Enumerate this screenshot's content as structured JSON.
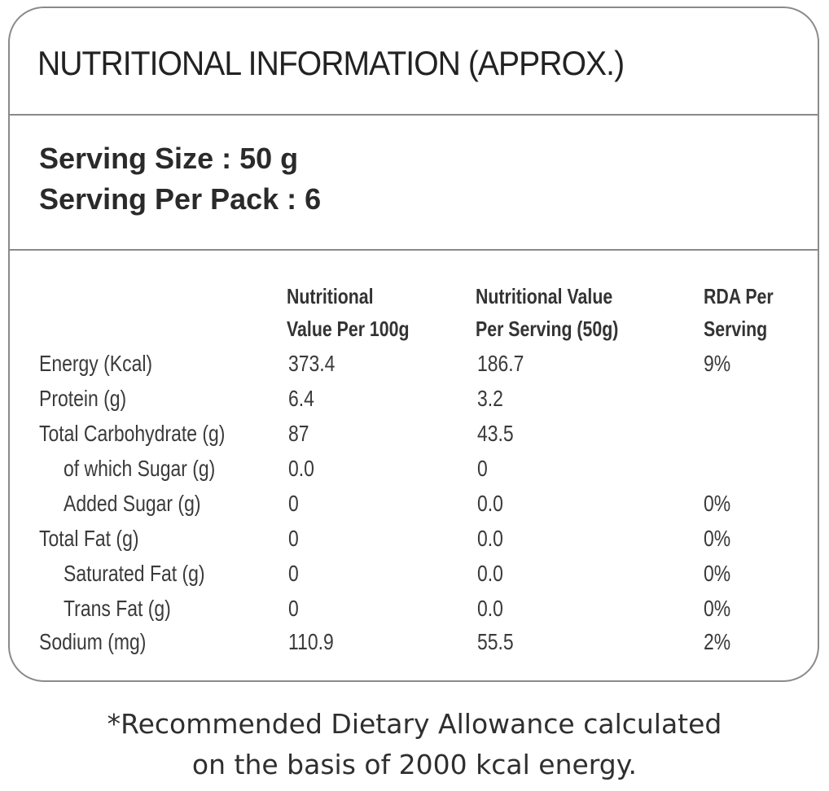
{
  "label": {
    "title": "NUTRITIONAL INFORMATION (APPROX.)",
    "serving_size": "Serving Size : 50 g",
    "serving_per_pack": "Serving Per Pack : 6"
  },
  "table": {
    "headers": {
      "per_100g_line1": "Nutritional",
      "per_100g_line2": "Value Per 100g",
      "per_serving_line1": "Nutritional Value",
      "per_serving_line2": "Per Serving (50g)",
      "rda_line1": "RDA Per",
      "rda_line2": "Serving"
    },
    "rows": [
      {
        "name": "Energy (Kcal)",
        "per_100g": "373.4",
        "per_serving": "186.7",
        "rda": "9%"
      },
      {
        "name": "Protein (g)",
        "per_100g": "6.4",
        "per_serving": "3.2",
        "rda": ""
      },
      {
        "name": "Total Carbohydrate (g)",
        "per_100g": "87",
        "per_serving": "43.5",
        "rda": ""
      },
      {
        "name": "of which Sugar (g)",
        "per_100g": "0.0",
        "per_serving": "0",
        "rda": ""
      },
      {
        "name": "Added Sugar (g)",
        "per_100g": "0",
        "per_serving": "0.0",
        "rda": "0%"
      },
      {
        "name": "Total Fat (g)",
        "per_100g": "0",
        "per_serving": "0.0",
        "rda": "0%"
      },
      {
        "name": "Saturated Fat (g)",
        "per_100g": "0",
        "per_serving": "0.0",
        "rda": "0%"
      },
      {
        "name": "Trans Fat (g)",
        "per_100g": "0",
        "per_serving": "0.0",
        "rda": "0%"
      },
      {
        "name": "Sodium (mg)",
        "per_100g": "110.9",
        "per_serving": "55.5",
        "rda": "2%"
      }
    ]
  },
  "footnote": {
    "line1": "*Recommended Dietary Allowance calculated",
    "line2": "on the basis of 2000 kcal energy."
  }
}
